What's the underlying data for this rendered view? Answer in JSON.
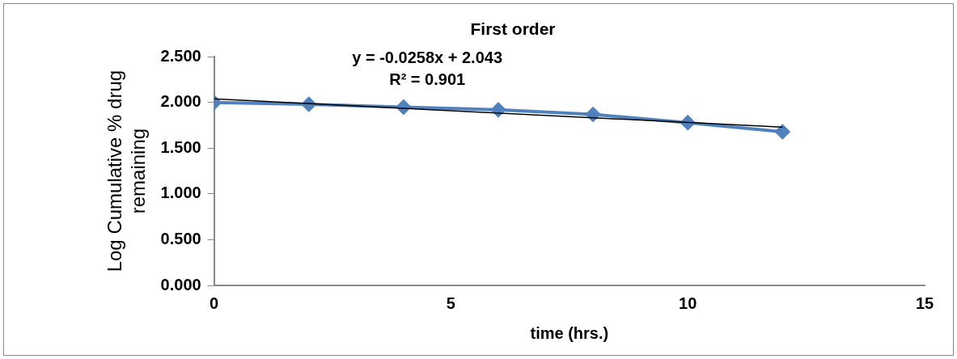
{
  "chart_data": {
    "type": "line",
    "title": "First order",
    "xlabel": "time (hrs.)",
    "ylabel": "Log Cumulative % drug remaining",
    "x": [
      0,
      2,
      4,
      6,
      8,
      10,
      12
    ],
    "series": [
      {
        "type": "line",
        "color": "#4f81bd",
        "values": [
          2.0,
          1.98,
          1.95,
          1.92,
          1.87,
          1.78,
          1.68
        ],
        "marker": "diamond"
      },
      {
        "type": "line",
        "color": "#000000",
        "x": [
          0,
          12
        ],
        "values": [
          2.04,
          1.73
        ],
        "marker": "none"
      }
    ],
    "annotations": [
      "y = -0.0258x + 2.043",
      "R² = 0.901"
    ],
    "xlim": [
      0,
      15
    ],
    "xticks": [
      0,
      5,
      10,
      15
    ],
    "ylim": [
      0,
      2.5
    ],
    "yticks": [
      {
        "value": 0,
        "label": "0.000"
      },
      {
        "value": 0.5,
        "label": "0.500"
      },
      {
        "value": 1,
        "label": "1.000"
      },
      {
        "value": 1.5,
        "label": "1.500"
      },
      {
        "value": 2,
        "label": "2.000"
      },
      {
        "value": 2.5,
        "label": "2.500"
      }
    ],
    "grid": false,
    "legend": false
  }
}
